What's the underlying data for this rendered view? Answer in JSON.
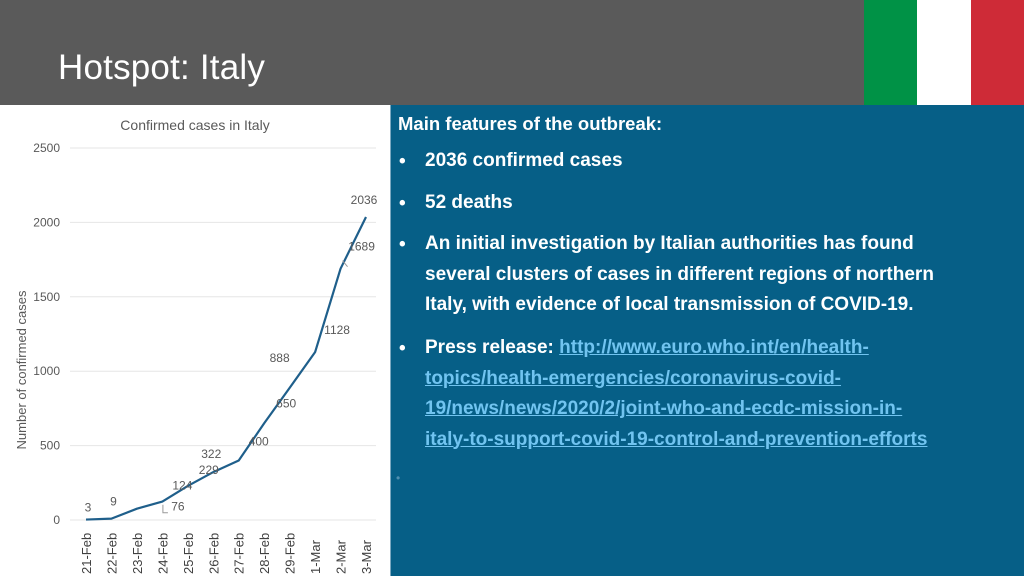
{
  "slide": {
    "title": "Hotspot: Italy"
  },
  "flag": {
    "colors": [
      "#009246",
      "#ffffff",
      "#ce2b37"
    ]
  },
  "chart_data": {
    "type": "line",
    "title": "Confirmed cases in Italy",
    "ylabel": "Number of confirmed cases",
    "xlabel": "",
    "categories": [
      "21-Feb",
      "22-Feb",
      "23-Feb",
      "24-Feb",
      "25-Feb",
      "26-Feb",
      "27-Feb",
      "28-Feb",
      "29-Feb",
      "1-Mar",
      "2-Mar",
      "3-Mar"
    ],
    "values": [
      3,
      9,
      76,
      124,
      229,
      322,
      400,
      650,
      888,
      1128,
      1689,
      2036
    ],
    "ylim": [
      0,
      2500
    ],
    "yticks": [
      0,
      500,
      1000,
      1500,
      2000,
      2500
    ],
    "grid": true,
    "line_color": "#1f5f8b"
  },
  "panel": {
    "heading": "Main features of the outbreak:",
    "bullet_char": "•",
    "bullets": {
      "b1": "2036 confirmed cases",
      "b2": "52 deaths",
      "b3_line1": "An initial investigation by Italian authorities has found",
      "b3_line2": "several clusters of cases in different regions of northern",
      "b3_line3": "Italy, with evidence of local transmission of COVID-19.",
      "b4_label": "Press release: ",
      "b4_link1": "http://www.euro.who.int/en/health-",
      "b4_link2": "topics/health-emergencies/coronavirus-covid-",
      "b4_link3": "19/news/news/2020/2/joint-who-and-ecdc-mission-in-",
      "b4_link4": "italy-to-support-covid-19-control-and-prevention-efforts"
    },
    "empty_bullet": "•"
  }
}
